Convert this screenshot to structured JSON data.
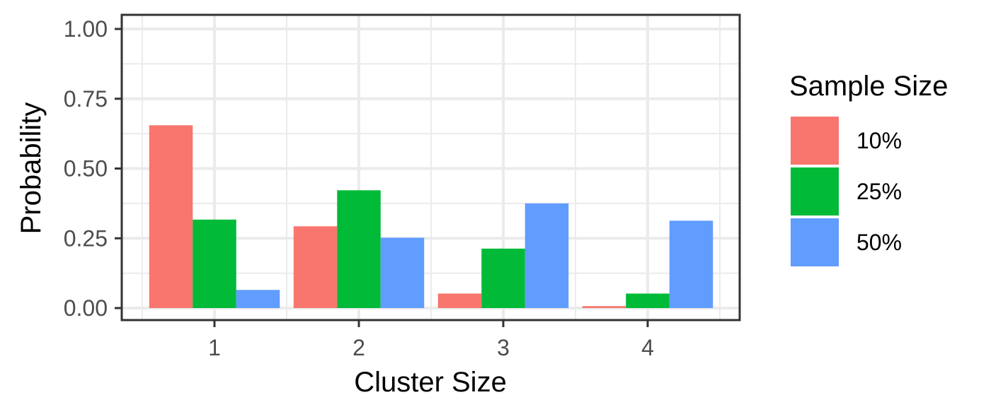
{
  "chart_data": {
    "type": "bar",
    "title": "",
    "xlabel": "Cluster Size",
    "ylabel": "Probability",
    "categories": [
      "1",
      "2",
      "3",
      "4"
    ],
    "ylim": [
      0,
      1
    ],
    "yticks": [
      "0.00",
      "0.25",
      "0.50",
      "0.75",
      "1.00"
    ],
    "grid": true,
    "legend": {
      "title": "Sample Size",
      "position": "right"
    },
    "series": [
      {
        "name": "10%",
        "color": "#F8766D",
        "values": [
          0.655,
          0.293,
          0.052,
          0.007
        ]
      },
      {
        "name": "25%",
        "color": "#00BA38",
        "values": [
          0.317,
          0.422,
          0.213,
          0.052
        ]
      },
      {
        "name": "50%",
        "color": "#619CFF",
        "values": [
          0.065,
          0.252,
          0.375,
          0.313
        ]
      }
    ]
  }
}
